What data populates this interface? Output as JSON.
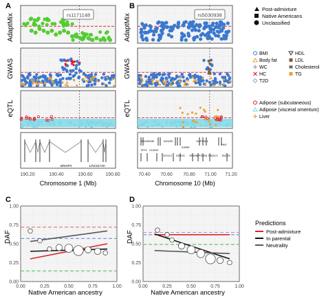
{
  "panel_letters": [
    "A",
    "B",
    "C",
    "D"
  ],
  "colors": {
    "post_admixture": "#d62728",
    "in_parental": "#111111",
    "neutrality": "#555555",
    "green": "#55cc33",
    "blue": "#3a78d0",
    "red": "#e0202a",
    "cyan": "#7fd8e8",
    "orange": "#f0a030",
    "grid": "#cfcfcf",
    "panel_bg": "#f4f4f4"
  },
  "labels": {
    "adaptmix": "AdaptMix",
    "gwas": "GWAS",
    "eqtl": "eQTL",
    "chrom1": "Chromosome 1 (Mb)",
    "chrom10": "Chromosome 10 (Mb)",
    "daf": "DAF",
    "ancestry": "Native American ancestry"
  },
  "snps": {
    "A": "rs1171148",
    "B": "rs5030938"
  },
  "legends": {
    "adaptmix": [
      {
        "label": "Post-admixture",
        "shape": "triangle"
      },
      {
        "label": "Native Americans",
        "shape": "square"
      },
      {
        "label": "Unclassified",
        "shape": "circle"
      }
    ],
    "gwas": [
      {
        "label": "BMI",
        "symbol": "circle-open",
        "color": "#3a78d0"
      },
      {
        "label": "HDL",
        "symbol": "triangle-down-open",
        "color": "#333333"
      },
      {
        "label": "Body fat",
        "symbol": "triangle-open",
        "color": "#f0a030"
      },
      {
        "label": "LDL",
        "symbol": "square-filled",
        "color": "#8b5a2b"
      },
      {
        "label": "WC",
        "symbol": "plus",
        "color": "#999999"
      },
      {
        "label": "Cholesterol",
        "symbol": "asterisk",
        "color": "#333333"
      },
      {
        "label": "HC",
        "symbol": "cross",
        "color": "#e0202a"
      },
      {
        "label": "TG",
        "symbol": "square-filled",
        "color": "#f0a030"
      },
      {
        "label": "T2D",
        "symbol": "diamond-open",
        "color": "#7fb0e0"
      }
    ],
    "eqtl": [
      {
        "label": "Adipose (subcutaneous)",
        "symbol": "circle-open",
        "color": "#e0202a"
      },
      {
        "label": "Adipose (visceral omentum)",
        "symbol": "triangle-open",
        "color": "#7fd8e8"
      },
      {
        "label": "Liver",
        "symbol": "plus",
        "color": "#f0a030"
      }
    ],
    "predictions_title": "Predictions",
    "predictions": [
      {
        "label": "Post-admixture",
        "color": "#d62728"
      },
      {
        "label": "In parental",
        "color": "#111111"
      },
      {
        "label": "Neutrality",
        "color": "#555555"
      }
    ]
  },
  "genes": {
    "A": [
      "BRINP3",
      "LINC01720"
    ],
    "B": [
      "SNORD98",
      "DDX50",
      "KIFBP",
      "SUPV3L1",
      "HK1",
      "TET1",
      "CCAR1",
      "STOX1",
      "DDX21",
      "SRGN",
      "VPS26A",
      "HKDC1",
      "TACR2"
    ]
  },
  "chart_data": [
    {
      "panel": "A",
      "type": "scatter",
      "track": "AdaptMix",
      "xlim": [
        190.1,
        190.8
      ],
      "ylabel": "AdaptMix",
      "threshold": "red dashed",
      "x": [
        190.18,
        190.21,
        190.24,
        190.27,
        190.3,
        190.33,
        190.36,
        190.39,
        190.42,
        190.45,
        190.48,
        190.51,
        190.54,
        190.57,
        190.6,
        190.63,
        190.66,
        190.69,
        190.72,
        190.76
      ],
      "y": [
        0.6,
        0.5,
        0.7,
        0.6,
        0.5,
        0.6,
        0.4,
        0.5,
        0.6,
        0.5,
        0.3,
        0.4,
        0.2,
        0.3,
        0.2,
        0.1,
        0.2,
        0.1,
        0.1,
        0.1
      ]
    },
    {
      "panel": "B",
      "type": "scatter",
      "track": "AdaptMix",
      "xlim": [
        70.38,
        71.25
      ],
      "ylabel": "AdaptMix",
      "threshold": "red dashed",
      "x": [
        70.45,
        70.5,
        70.55,
        70.6,
        70.65,
        70.7,
        70.75,
        70.8,
        70.85,
        70.9,
        70.95,
        71.0,
        71.05,
        71.1,
        71.15,
        71.2
      ],
      "y": [
        0.5,
        0.6,
        0.7,
        0.6,
        0.8,
        0.7,
        0.8,
        0.9,
        0.8,
        0.8,
        0.9,
        0.8,
        0.7,
        0.8,
        0.6,
        0.5
      ]
    },
    {
      "panel": "C",
      "type": "line",
      "xlabel": "Native American ancestry",
      "ylabel": "DAF",
      "xlim": [
        0.0,
        1.0
      ],
      "ylim": [
        0.0,
        1.0
      ],
      "xticks": [
        "0.00",
        "0.25",
        "0.50",
        "0.75",
        "1.00"
      ],
      "yticks": [
        "0.00",
        "0.25",
        "0.50",
        "0.75",
        "1.00"
      ],
      "hlines": [
        {
          "y": 0.72,
          "color": "#e07070"
        },
        {
          "y": 0.57,
          "color": "#7090d0"
        },
        {
          "y": 0.14,
          "color": "#60c060"
        }
      ],
      "series": [
        {
          "name": "Post-admixture",
          "x": [
            0.1,
            0.9
          ],
          "y": [
            0.3,
            0.5
          ]
        },
        {
          "name": "In parental",
          "x": [
            0.1,
            0.9
          ],
          "y": [
            0.4,
            0.43
          ]
        },
        {
          "name": "Neutrality",
          "x": [
            0.1,
            0.9
          ],
          "y": [
            0.53,
            0.67
          ]
        }
      ],
      "points": {
        "x": [
          0.1,
          0.2,
          0.3,
          0.4,
          0.5,
          0.6,
          0.7,
          0.8,
          0.88
        ],
        "y": [
          0.67,
          0.54,
          0.43,
          0.45,
          0.44,
          0.41,
          0.42,
          0.4,
          0.38
        ],
        "size": [
          1,
          1,
          1,
          2,
          3,
          4,
          2,
          2,
          1
        ]
      }
    },
    {
      "panel": "D",
      "type": "line",
      "xlabel": "Native American ancestry",
      "ylabel": "DAF",
      "xlim": [
        0.0,
        1.0
      ],
      "ylim": [
        0.0,
        1.0
      ],
      "xticks": [
        "0.00",
        "0.25",
        "0.50",
        "0.75",
        "1.00"
      ],
      "yticks": [
        "0.00",
        "0.25",
        "0.50",
        "0.75",
        "1.00"
      ],
      "hlines": [
        {
          "y": 0.65,
          "color": "#c080e0"
        },
        {
          "y": 0.62,
          "color": "#7090d0"
        },
        {
          "y": 0.49,
          "color": "#60c060"
        }
      ],
      "series": [
        {
          "name": "Post-admixture",
          "x": [
            0.12,
            0.9
          ],
          "y": [
            0.62,
            0.62
          ]
        },
        {
          "name": "In parental",
          "x": [
            0.12,
            0.9
          ],
          "y": [
            0.63,
            0.3
          ]
        },
        {
          "name": "Neutrality",
          "x": [
            0.12,
            0.9
          ],
          "y": [
            0.41,
            0.37
          ]
        }
      ],
      "points": {
        "x": [
          0.15,
          0.25,
          0.3,
          0.4,
          0.5,
          0.6,
          0.7,
          0.8,
          0.9
        ],
        "y": [
          0.68,
          0.62,
          0.55,
          0.47,
          0.42,
          0.37,
          0.3,
          0.28,
          0.25
        ],
        "size": [
          1,
          1,
          1,
          2,
          3,
          3,
          4,
          2,
          1
        ]
      }
    }
  ]
}
